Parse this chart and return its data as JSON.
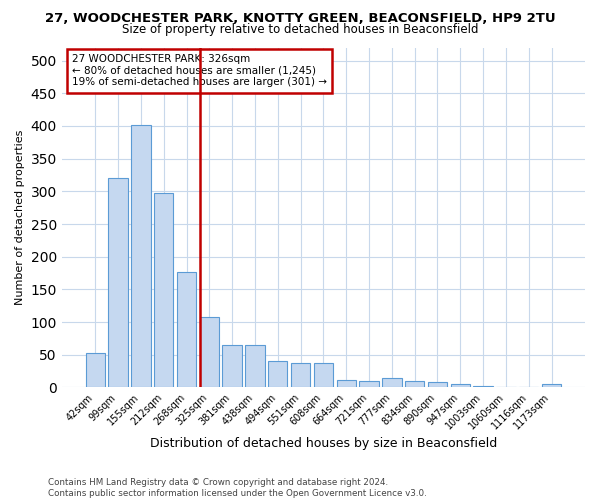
{
  "title": "27, WOODCHESTER PARK, KNOTTY GREEN, BEACONSFIELD, HP9 2TU",
  "subtitle": "Size of property relative to detached houses in Beaconsfield",
  "xlabel": "Distribution of detached houses by size in Beaconsfield",
  "ylabel": "Number of detached properties",
  "categories": [
    "42sqm",
    "99sqm",
    "155sqm",
    "212sqm",
    "268sqm",
    "325sqm",
    "381sqm",
    "438sqm",
    "494sqm",
    "551sqm",
    "608sqm",
    "664sqm",
    "721sqm",
    "777sqm",
    "834sqm",
    "890sqm",
    "947sqm",
    "1003sqm",
    "1060sqm",
    "1116sqm",
    "1173sqm"
  ],
  "values": [
    53,
    320,
    402,
    297,
    176,
    108,
    65,
    65,
    40,
    37,
    37,
    11,
    10,
    15,
    10,
    8,
    5,
    2,
    1,
    1,
    6
  ],
  "bar_color": "#c5d8f0",
  "bar_edge_color": "#5b9bd5",
  "marker_line_index": 5,
  "marker_line_color": "#c00000",
  "annotation_line1": "27 WOODCHESTER PARK: 326sqm",
  "annotation_line2": "← 80% of detached houses are smaller (1,245)",
  "annotation_line3": "19% of semi-detached houses are larger (301) →",
  "annotation_box_color": "#c00000",
  "ylim_max": 520,
  "yticks": [
    0,
    50,
    100,
    150,
    200,
    250,
    300,
    350,
    400,
    450,
    500
  ],
  "footer_text": "Contains HM Land Registry data © Crown copyright and database right 2024.\nContains public sector information licensed under the Open Government Licence v3.0.",
  "bg_color": "#ffffff",
  "grid_color": "#c8d8eb"
}
